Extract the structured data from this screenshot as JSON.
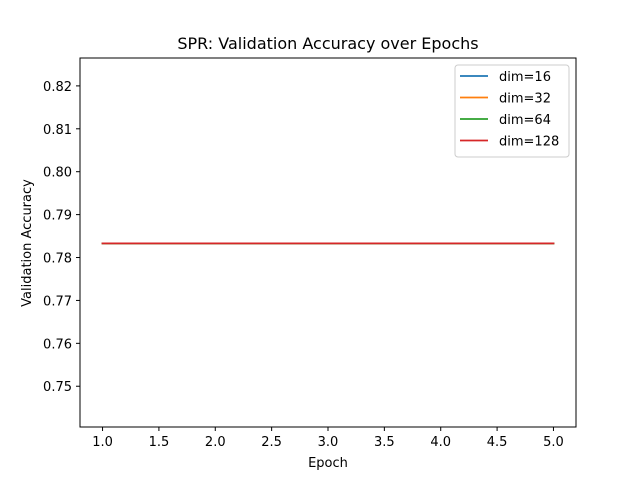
{
  "chart_data": {
    "type": "line",
    "title": "SPR: Validation Accuracy over Epochs",
    "xlabel": "Epoch",
    "ylabel": "Validation Accuracy",
    "xlim": [
      0.8,
      5.2
    ],
    "ylim": [
      0.7405,
      0.8265
    ],
    "xticks": [
      1.0,
      1.5,
      2.0,
      2.5,
      3.0,
      3.5,
      4.0,
      4.5,
      5.0
    ],
    "xtick_labels": [
      "1.0",
      "1.5",
      "2.0",
      "2.5",
      "3.0",
      "3.5",
      "4.0",
      "4.5",
      "5.0"
    ],
    "yticks": [
      0.75,
      0.76,
      0.77,
      0.78,
      0.79,
      0.8,
      0.81,
      0.82
    ],
    "ytick_labels": [
      "0.75",
      "0.76",
      "0.77",
      "0.78",
      "0.79",
      "0.80",
      "0.81",
      "0.82"
    ],
    "grid": false,
    "legend_position": "top-right",
    "series": [
      {
        "name": "dim=16",
        "color": "#1f77b4",
        "x": [
          1,
          2,
          3,
          4,
          5
        ],
        "y": [
          0.7833,
          0.7833,
          0.7833,
          0.7833,
          0.7833
        ]
      },
      {
        "name": "dim=32",
        "color": "#ff7f0e",
        "x": [
          1,
          2,
          3,
          4,
          5
        ],
        "y": [
          0.7833,
          0.7833,
          0.7833,
          0.7833,
          0.7833
        ]
      },
      {
        "name": "dim=64",
        "color": "#2ca02c",
        "x": [
          1,
          2,
          3,
          4,
          5
        ],
        "y": [
          0.7833,
          0.7833,
          0.7833,
          0.7833,
          0.7833
        ]
      },
      {
        "name": "dim=128",
        "color": "#d62728",
        "x": [
          1,
          2,
          3,
          4,
          5
        ],
        "y": [
          0.7833,
          0.7833,
          0.7833,
          0.7833,
          0.7833
        ]
      }
    ]
  }
}
